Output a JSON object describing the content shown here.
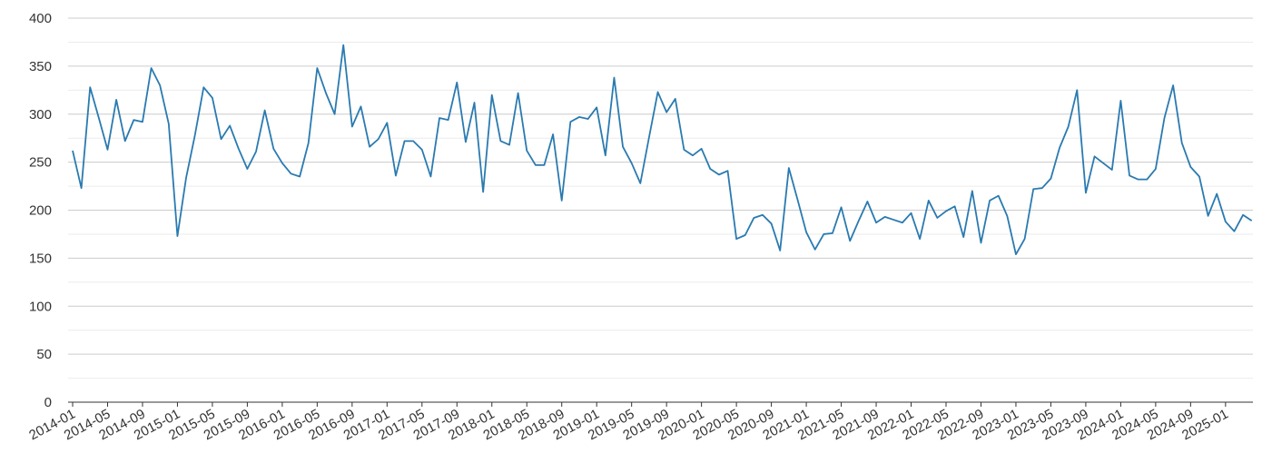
{
  "chart_data": {
    "type": "line",
    "title": "",
    "xlabel": "",
    "ylabel": "",
    "ylim": [
      0,
      400
    ],
    "y_ticks": [
      0,
      50,
      100,
      150,
      200,
      250,
      300,
      350,
      400
    ],
    "x_tick_labels": [
      "2014-01",
      "2014-05",
      "2014-09",
      "2015-01",
      "2015-05",
      "2015-09",
      "2016-01",
      "2016-05",
      "2016-09",
      "2017-01",
      "2017-05",
      "2017-09",
      "2018-01",
      "2018-05",
      "2018-09",
      "2019-01",
      "2019-05",
      "2019-09",
      "2020-01",
      "2020-05",
      "2020-09",
      "2021-01",
      "2021-05",
      "2021-09",
      "2022-01",
      "2022-05",
      "2022-09",
      "2023-01",
      "2023-05",
      "2023-09",
      "2024-01",
      "2024-05",
      "2024-09",
      "2025-01"
    ],
    "x_start": "2014-01",
    "grid": true,
    "legend": "none",
    "series": [
      {
        "color": "#2a7ab0",
        "values": [
          262,
          223,
          328,
          296,
          263,
          315,
          272,
          294,
          292,
          348,
          330,
          290,
          173,
          234,
          278,
          328,
          317,
          274,
          288,
          264,
          243,
          261,
          304,
          264,
          249,
          238,
          235,
          270,
          348,
          322,
          300,
          372,
          287,
          308,
          266,
          274,
          291,
          236,
          272,
          272,
          263,
          235,
          296,
          294,
          333,
          271,
          312,
          219,
          320,
          272,
          268,
          322,
          262,
          247,
          247,
          279,
          210,
          292,
          297,
          295,
          307,
          257,
          338,
          266,
          249,
          228,
          276,
          323,
          302,
          316,
          263,
          257,
          264,
          243,
          237,
          241,
          170,
          174,
          192,
          195,
          186,
          158,
          244,
          211,
          177,
          159,
          175,
          176,
          203,
          168,
          189,
          209,
          187,
          193,
          190,
          187,
          197,
          170,
          210,
          192,
          199,
          204,
          172,
          220,
          166,
          210,
          215,
          194,
          154,
          170,
          222,
          223,
          233,
          265,
          287,
          325,
          218,
          256,
          249,
          242,
          314,
          236,
          232,
          232,
          243,
          296,
          330,
          270,
          245,
          235,
          194,
          217,
          188,
          178,
          195,
          189
        ]
      }
    ]
  }
}
